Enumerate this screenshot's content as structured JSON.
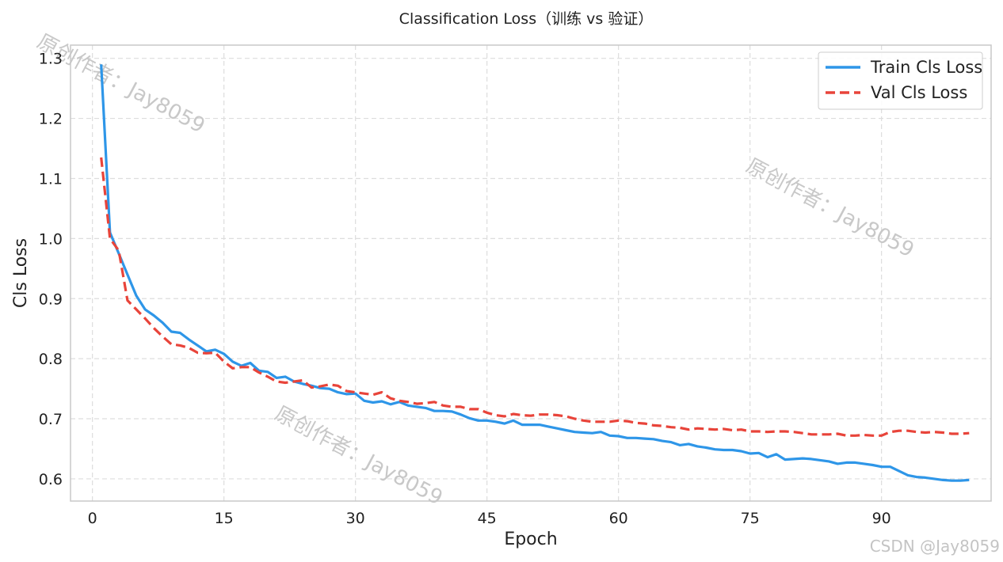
{
  "chart_data": {
    "type": "line",
    "title": "Classification Loss（训练 vs 验证）",
    "xlabel": "Epoch",
    "ylabel": "Cls Loss",
    "xlim": [
      -2.5,
      102.5
    ],
    "ylim": [
      0.563,
      1.322
    ],
    "xticks": [
      0,
      15,
      30,
      45,
      60,
      75,
      90
    ],
    "yticks": [
      0.6,
      0.7,
      0.8,
      0.9,
      1.0,
      1.1,
      1.2,
      1.3
    ],
    "grid": true,
    "legend_position": "top-right",
    "series": [
      {
        "name": "Train Cls Loss",
        "color": "#2E96E8",
        "style": "solid",
        "x": [
          1,
          2,
          3,
          4,
          5,
          6,
          7,
          8,
          9,
          10,
          11,
          12,
          13,
          14,
          15,
          16,
          17,
          18,
          19,
          20,
          21,
          22,
          23,
          24,
          25,
          26,
          27,
          28,
          29,
          30,
          31,
          32,
          33,
          34,
          35,
          36,
          37,
          38,
          39,
          40,
          41,
          42,
          43,
          44,
          45,
          46,
          47,
          48,
          49,
          50,
          51,
          52,
          53,
          54,
          55,
          56,
          57,
          58,
          59,
          60,
          61,
          62,
          63,
          64,
          65,
          66,
          67,
          68,
          69,
          70,
          71,
          72,
          73,
          74,
          75,
          76,
          77,
          78,
          79,
          80,
          81,
          82,
          83,
          84,
          85,
          86,
          87,
          88,
          89,
          90,
          91,
          92,
          93,
          94,
          95,
          96,
          97,
          98,
          99,
          100
        ],
        "values": [
          1.29,
          1.01,
          0.975,
          0.94,
          0.905,
          0.882,
          0.872,
          0.86,
          0.845,
          0.843,
          0.832,
          0.822,
          0.812,
          0.815,
          0.808,
          0.795,
          0.788,
          0.793,
          0.78,
          0.778,
          0.768,
          0.77,
          0.762,
          0.758,
          0.755,
          0.751,
          0.75,
          0.744,
          0.741,
          0.742,
          0.73,
          0.727,
          0.729,
          0.724,
          0.728,
          0.722,
          0.72,
          0.718,
          0.713,
          0.713,
          0.712,
          0.707,
          0.701,
          0.697,
          0.697,
          0.695,
          0.692,
          0.697,
          0.69,
          0.69,
          0.69,
          0.687,
          0.684,
          0.681,
          0.678,
          0.677,
          0.676,
          0.678,
          0.672,
          0.671,
          0.668,
          0.668,
          0.667,
          0.666,
          0.663,
          0.661,
          0.656,
          0.658,
          0.654,
          0.652,
          0.649,
          0.648,
          0.648,
          0.646,
          0.642,
          0.643,
          0.636,
          0.641,
          0.632,
          0.633,
          0.634,
          0.633,
          0.631,
          0.629,
          0.625,
          0.627,
          0.627,
          0.625,
          0.623,
          0.62,
          0.62,
          0.613,
          0.606,
          0.603,
          0.602,
          0.6,
          0.598,
          0.597,
          0.597,
          0.598
        ]
      },
      {
        "name": "Val Cls Loss",
        "color": "#E8443A",
        "style": "dashed",
        "x": [
          1,
          2,
          3,
          4,
          5,
          6,
          7,
          8,
          9,
          10,
          11,
          12,
          13,
          14,
          15,
          16,
          17,
          18,
          19,
          20,
          21,
          22,
          23,
          24,
          25,
          26,
          27,
          28,
          29,
          30,
          31,
          32,
          33,
          34,
          35,
          36,
          37,
          38,
          39,
          40,
          41,
          42,
          43,
          44,
          45,
          46,
          47,
          48,
          49,
          50,
          51,
          52,
          53,
          54,
          55,
          56,
          57,
          58,
          59,
          60,
          61,
          62,
          63,
          64,
          65,
          66,
          67,
          68,
          69,
          70,
          71,
          72,
          73,
          74,
          75,
          76,
          77,
          78,
          79,
          80,
          81,
          82,
          83,
          84,
          85,
          86,
          87,
          88,
          89,
          90,
          91,
          92,
          93,
          94,
          95,
          96,
          97,
          98,
          99,
          100
        ],
        "values": [
          1.135,
          1.0,
          0.98,
          0.897,
          0.882,
          0.867,
          0.851,
          0.837,
          0.824,
          0.822,
          0.818,
          0.81,
          0.809,
          0.81,
          0.795,
          0.784,
          0.786,
          0.786,
          0.777,
          0.77,
          0.762,
          0.76,
          0.762,
          0.764,
          0.752,
          0.754,
          0.757,
          0.755,
          0.746,
          0.744,
          0.742,
          0.74,
          0.744,
          0.734,
          0.73,
          0.728,
          0.725,
          0.726,
          0.728,
          0.722,
          0.72,
          0.72,
          0.716,
          0.716,
          0.71,
          0.706,
          0.704,
          0.708,
          0.706,
          0.705,
          0.707,
          0.707,
          0.706,
          0.704,
          0.7,
          0.697,
          0.695,
          0.695,
          0.695,
          0.697,
          0.696,
          0.693,
          0.692,
          0.689,
          0.688,
          0.686,
          0.685,
          0.682,
          0.684,
          0.683,
          0.682,
          0.683,
          0.681,
          0.682,
          0.679,
          0.679,
          0.678,
          0.679,
          0.679,
          0.678,
          0.676,
          0.674,
          0.674,
          0.674,
          0.675,
          0.672,
          0.672,
          0.673,
          0.672,
          0.672,
          0.678,
          0.68,
          0.68,
          0.678,
          0.677,
          0.678,
          0.677,
          0.675,
          0.675,
          0.676
        ]
      }
    ]
  },
  "watermarks": [
    "原创作者：Jay8059",
    "原创作者：Jay8059",
    "原创作者：Jay8059"
  ],
  "footer_mark": "CSDN @Jay8059"
}
